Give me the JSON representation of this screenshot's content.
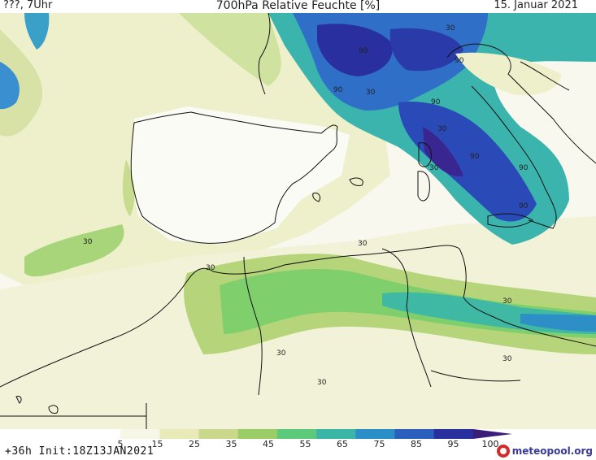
{
  "header": {
    "left": "???, 7Uhr",
    "title": "700hPa Relative Feuchte [%]",
    "date": "15. Januar 2021"
  },
  "map": {
    "contour_labels": [
      "99",
      "90",
      "90",
      "90",
      "90",
      "90",
      "90",
      "30",
      "30",
      "30",
      "30",
      "30",
      "30",
      "30",
      "30",
      "30",
      "30",
      "30"
    ]
  },
  "legend": {
    "ticks": [
      "5",
      "15",
      "25",
      "35",
      "45",
      "55",
      "65",
      "75",
      "85",
      "95",
      "100"
    ],
    "colors": [
      "#ffffff",
      "#f7f7e8",
      "#e8eab8",
      "#c9d88a",
      "#9acd66",
      "#5dc97a",
      "#3bb6a6",
      "#2a8fc9",
      "#2a5fc0",
      "#2a2fa0",
      "#3a1e7a"
    ]
  },
  "footer": {
    "run": "+36h Init:18Z13JAN2021",
    "brand": "meteopool.org"
  }
}
